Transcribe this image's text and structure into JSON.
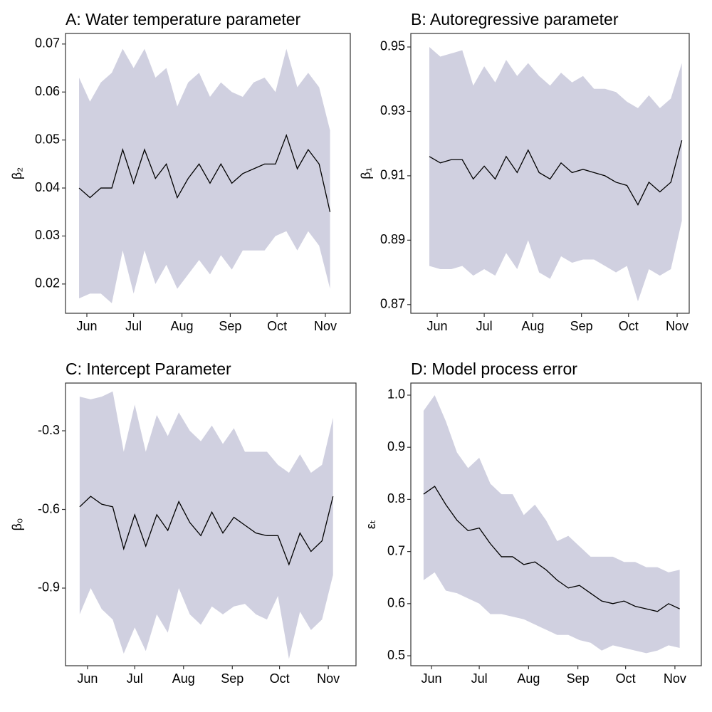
{
  "chart_data": [
    {
      "type": "line",
      "title": "A: Water temperature parameter",
      "ylabel": "β₂",
      "x": [
        147,
        154,
        161,
        168,
        175,
        182,
        189,
        196,
        203,
        210,
        217,
        224,
        231,
        238,
        245,
        252,
        259,
        266,
        273,
        280,
        287,
        294,
        301,
        308
      ],
      "values": [
        0.04,
        0.038,
        0.04,
        0.04,
        0.048,
        0.041,
        0.048,
        0.042,
        0.045,
        0.038,
        0.042,
        0.045,
        0.041,
        0.045,
        0.041,
        0.043,
        0.044,
        0.045,
        0.045,
        0.051,
        0.044,
        0.048,
        0.045,
        0.035
      ],
      "upper": [
        0.063,
        0.058,
        0.062,
        0.064,
        0.069,
        0.065,
        0.069,
        0.063,
        0.065,
        0.057,
        0.062,
        0.064,
        0.059,
        0.062,
        0.06,
        0.059,
        0.062,
        0.063,
        0.06,
        0.069,
        0.061,
        0.064,
        0.061,
        0.052
      ],
      "lower": [
        0.017,
        0.018,
        0.018,
        0.016,
        0.027,
        0.018,
        0.027,
        0.02,
        0.024,
        0.019,
        0.022,
        0.025,
        0.022,
        0.026,
        0.023,
        0.027,
        0.027,
        0.027,
        0.03,
        0.031,
        0.027,
        0.031,
        0.028,
        0.019
      ],
      "xlim": [
        138.3,
        321
      ],
      "ylim": [
        0.0139,
        0.0722
      ],
      "xticks": [
        {
          "value": 152,
          "label": "Jun"
        },
        {
          "value": 182,
          "label": "Jul"
        },
        {
          "value": 213,
          "label": "Aug"
        },
        {
          "value": 244,
          "label": "Sep"
        },
        {
          "value": 274,
          "label": "Oct"
        },
        {
          "value": 305,
          "label": "Nov"
        }
      ],
      "yticks": [
        0.02,
        0.03,
        0.04,
        0.05,
        0.06,
        0.07
      ],
      "line_color": "#000000",
      "band_color": "#d0d0e0"
    },
    {
      "type": "line",
      "title": "B: Autoregressive parameter",
      "ylabel": "β₁",
      "x": [
        147,
        154,
        161,
        168,
        175,
        182,
        189,
        196,
        203,
        210,
        217,
        224,
        231,
        238,
        245,
        252,
        259,
        266,
        273,
        280,
        287,
        294,
        301,
        308
      ],
      "values": [
        0.916,
        0.914,
        0.915,
        0.915,
        0.909,
        0.913,
        0.909,
        0.916,
        0.911,
        0.918,
        0.911,
        0.909,
        0.914,
        0.911,
        0.912,
        0.911,
        0.91,
        0.908,
        0.907,
        0.901,
        0.908,
        0.905,
        0.908,
        0.921
      ],
      "upper": [
        0.95,
        0.947,
        0.948,
        0.949,
        0.938,
        0.944,
        0.939,
        0.946,
        0.941,
        0.945,
        0.941,
        0.938,
        0.942,
        0.939,
        0.941,
        0.937,
        0.937,
        0.936,
        0.933,
        0.931,
        0.935,
        0.931,
        0.934,
        0.945
      ],
      "lower": [
        0.882,
        0.881,
        0.881,
        0.882,
        0.879,
        0.881,
        0.879,
        0.886,
        0.881,
        0.89,
        0.88,
        0.878,
        0.885,
        0.883,
        0.884,
        0.884,
        0.882,
        0.88,
        0.882,
        0.871,
        0.881,
        0.879,
        0.881,
        0.896
      ],
      "xlim": [
        135.2,
        312.7
      ],
      "ylim": [
        0.8673,
        0.9542
      ],
      "xticks": [
        {
          "value": 152,
          "label": "Jun"
        },
        {
          "value": 182,
          "label": "Jul"
        },
        {
          "value": 213,
          "label": "Aug"
        },
        {
          "value": 244,
          "label": "Sep"
        },
        {
          "value": 274,
          "label": "Oct"
        },
        {
          "value": 305,
          "label": "Nov"
        }
      ],
      "yticks": [
        0.87,
        0.89,
        0.91,
        0.93,
        0.95
      ],
      "line_color": "#000000",
      "band_color": "#d0d0e0"
    },
    {
      "type": "line",
      "title": "C: Intercept Parameter",
      "ylabel": "β₀",
      "x": [
        147,
        154,
        161,
        168,
        175,
        182,
        189,
        196,
        203,
        210,
        217,
        224,
        231,
        238,
        245,
        252,
        259,
        266,
        273,
        280,
        287,
        294,
        301,
        308
      ],
      "values": [
        -0.59,
        -0.55,
        -0.58,
        -0.59,
        -0.75,
        -0.62,
        -0.74,
        -0.62,
        -0.68,
        -0.57,
        -0.65,
        -0.7,
        -0.61,
        -0.69,
        -0.63,
        -0.66,
        -0.69,
        -0.7,
        -0.7,
        -0.81,
        -0.69,
        -0.76,
        -0.72,
        -0.55
      ],
      "upper": [
        -0.17,
        -0.18,
        -0.17,
        -0.15,
        -0.38,
        -0.2,
        -0.38,
        -0.24,
        -0.32,
        -0.23,
        -0.3,
        -0.34,
        -0.28,
        -0.35,
        -0.29,
        -0.38,
        -0.38,
        -0.38,
        -0.43,
        -0.46,
        -0.39,
        -0.46,
        -0.43,
        -0.25
      ],
      "lower": [
        -1.0,
        -0.9,
        -0.98,
        -1.02,
        -1.15,
        -1.05,
        -1.14,
        -1.0,
        -1.07,
        -0.9,
        -1.0,
        -1.04,
        -0.97,
        -1.0,
        -0.97,
        -0.96,
        -1.0,
        -1.02,
        -0.93,
        -1.17,
        -0.99,
        -1.06,
        -1.02,
        -0.85
      ],
      "xlim": [
        138,
        322.6
      ],
      "ylim": [
        -1.196,
        -0.118
      ],
      "xticks": [
        {
          "value": 152,
          "label": "Jun"
        },
        {
          "value": 182,
          "label": "Jul"
        },
        {
          "value": 213,
          "label": "Aug"
        },
        {
          "value": 244,
          "label": "Sep"
        },
        {
          "value": 274,
          "label": "Oct"
        },
        {
          "value": 305,
          "label": "Nov"
        }
      ],
      "yticks": [
        -0.9,
        -0.6,
        -0.3
      ],
      "line_color": "#000000",
      "band_color": "#d0d0e0"
    },
    {
      "type": "line",
      "title": "D: Model process error",
      "ylabel": "εₜ",
      "x": [
        147,
        154,
        161,
        168,
        175,
        182,
        189,
        196,
        203,
        210,
        217,
        224,
        231,
        238,
        245,
        252,
        259,
        266,
        273,
        280,
        287,
        294,
        301,
        308
      ],
      "values": [
        0.81,
        0.825,
        0.79,
        0.76,
        0.74,
        0.745,
        0.715,
        0.69,
        0.69,
        0.675,
        0.68,
        0.665,
        0.645,
        0.63,
        0.635,
        0.62,
        0.605,
        0.6,
        0.605,
        0.595,
        0.59,
        0.585,
        0.6,
        0.59
      ],
      "upper": [
        0.97,
        1.0,
        0.95,
        0.89,
        0.86,
        0.88,
        0.83,
        0.81,
        0.81,
        0.77,
        0.79,
        0.76,
        0.72,
        0.73,
        0.71,
        0.69,
        0.69,
        0.69,
        0.68,
        0.68,
        0.67,
        0.67,
        0.66,
        0.665
      ],
      "lower": [
        0.645,
        0.66,
        0.625,
        0.62,
        0.61,
        0.6,
        0.58,
        0.58,
        0.575,
        0.57,
        0.56,
        0.55,
        0.54,
        0.54,
        0.53,
        0.525,
        0.51,
        0.52,
        0.515,
        0.51,
        0.505,
        0.51,
        0.52,
        0.515
      ],
      "xlim": [
        139,
        321.6
      ],
      "ylim": [
        0.4809,
        1.0232
      ],
      "xticks": [
        {
          "value": 152,
          "label": "Jun"
        },
        {
          "value": 182,
          "label": "Jul"
        },
        {
          "value": 213,
          "label": "Aug"
        },
        {
          "value": 244,
          "label": "Sep"
        },
        {
          "value": 274,
          "label": "Oct"
        },
        {
          "value": 305,
          "label": "Nov"
        }
      ],
      "yticks": [
        0.5,
        0.6,
        0.7,
        0.8,
        0.9,
        {
          "value": 1,
          "label": "1.0"
        }
      ],
      "line_color": "#000000",
      "band_color": "#d0d0e0"
    }
  ]
}
